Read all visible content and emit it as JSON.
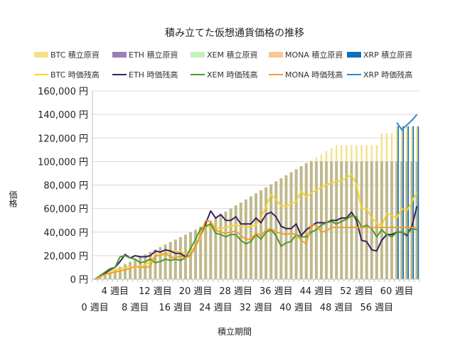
{
  "chart_data": {
    "type": "bar+line",
    "title": "積み立てた仮想通貨価格の推移",
    "xlabel": "積立期間",
    "ylabel": "価格",
    "ylim": [
      0,
      160000
    ],
    "y_ticks": [
      "0 円",
      "20,000 円",
      "40,000 円",
      "60,000 円",
      "80,000 円",
      "100,000 円",
      "120,000 円",
      "140,000 円",
      "160,000 円"
    ],
    "y_tick_values": [
      0,
      20000,
      40000,
      60000,
      80000,
      100000,
      120000,
      140000,
      160000
    ],
    "x": [
      0,
      1,
      2,
      3,
      4,
      5,
      6,
      7,
      8,
      9,
      10,
      11,
      12,
      13,
      14,
      15,
      16,
      17,
      18,
      19,
      20,
      21,
      22,
      23,
      24,
      25,
      26,
      27,
      28,
      29,
      30,
      31,
      32,
      33,
      34,
      35,
      36,
      37,
      38,
      39,
      40,
      41,
      42,
      43,
      44,
      45,
      46,
      47,
      48,
      49,
      50,
      51,
      52,
      53,
      54,
      55,
      56,
      57,
      58,
      59,
      60,
      61,
      62,
      63,
      64
    ],
    "x_tick_labels": [
      {
        "week": 0,
        "label": "0 週目"
      },
      {
        "week": 4,
        "label": "4 週目"
      },
      {
        "week": 8,
        "label": "8 週目"
      },
      {
        "week": 12,
        "label": "12 週目"
      },
      {
        "week": 16,
        "label": "16 週目"
      },
      {
        "week": 20,
        "label": "20 週目"
      },
      {
        "week": 24,
        "label": "24 週目"
      },
      {
        "week": 28,
        "label": "28 週目"
      },
      {
        "week": 32,
        "label": "32 週目"
      },
      {
        "week": 36,
        "label": "36 週目"
      },
      {
        "week": 40,
        "label": "40 週目"
      },
      {
        "week": 44,
        "label": "44 週目"
      },
      {
        "week": 48,
        "label": "48 週目"
      },
      {
        "week": 52,
        "label": "52 週目"
      },
      {
        "week": 56,
        "label": "56 週目"
      },
      {
        "week": 60,
        "label": "60 週目"
      }
    ],
    "grid": true,
    "legend_position": "top",
    "bar_series": [
      {
        "name": "BTC 積立原資",
        "color": "#f5e08a",
        "values": [
          0,
          2100,
          4200,
          6300,
          8400,
          10500,
          12600,
          14700,
          16800,
          18900,
          21000,
          23100,
          25200,
          27300,
          29400,
          31500,
          33600,
          35700,
          37800,
          39900,
          42000,
          44600,
          47100,
          49700,
          52300,
          54900,
          57400,
          60000,
          62600,
          65100,
          67700,
          70300,
          72900,
          75400,
          78000,
          80600,
          83100,
          85700,
          88300,
          90900,
          93400,
          96000,
          98600,
          101100,
          103700,
          106300,
          108900,
          111400,
          114000,
          114000,
          114000,
          114000,
          114000,
          114000,
          114000,
          114000,
          114000,
          124000,
          124000,
          124000,
          130000,
          130000,
          130000,
          130000,
          130000
        ]
      },
      {
        "name": "ETH 積立原資",
        "color": "#9b7fb8",
        "values": [
          0,
          2100,
          4200,
          6300,
          8400,
          10500,
          12600,
          14700,
          16800,
          18900,
          21000,
          23100,
          25200,
          27300,
          29400,
          31500,
          33600,
          35700,
          37800,
          39900,
          42000,
          44600,
          47100,
          49700,
          52300,
          54900,
          57400,
          60000,
          62600,
          65100,
          67700,
          70300,
          72900,
          75400,
          78000,
          80600,
          83100,
          85700,
          88300,
          90900,
          93400,
          96000,
          98600,
          100000,
          100000,
          100000,
          100000,
          100000,
          100000,
          100000,
          100000,
          100000,
          100000,
          100000,
          100000,
          100000,
          100000,
          100000,
          100000,
          100000,
          100000,
          100000,
          100000,
          100000,
          100000
        ]
      },
      {
        "name": "XEM 積立原資",
        "color": "#c6f0b8",
        "values": [
          0,
          2100,
          4200,
          6300,
          8400,
          10500,
          12600,
          14700,
          16800,
          18900,
          21000,
          23100,
          25200,
          27300,
          29400,
          31500,
          33600,
          35700,
          37800,
          39900,
          42000,
          44600,
          47100,
          49700,
          52300,
          54900,
          57400,
          60000,
          62600,
          65100,
          67700,
          70300,
          72900,
          75400,
          78000,
          80600,
          83100,
          85700,
          88300,
          90900,
          93400,
          96000,
          98600,
          100000,
          100000,
          100000,
          100000,
          100000,
          100000,
          100000,
          100000,
          100000,
          100000,
          100000,
          100000,
          100000,
          100000,
          100000,
          100000,
          100000,
          100000,
          100000,
          100000,
          100000,
          100000
        ]
      },
      {
        "name": "MONA 積立原資",
        "color": "#f7c890",
        "values": [
          0,
          2100,
          4200,
          6300,
          8400,
          10500,
          12600,
          14700,
          16800,
          18900,
          21000,
          23100,
          25200,
          27300,
          29400,
          31500,
          33600,
          35700,
          37800,
          39900,
          42000,
          44600,
          47100,
          49700,
          52300,
          54900,
          57400,
          60000,
          62600,
          65100,
          67700,
          70300,
          72900,
          75400,
          78000,
          80600,
          83100,
          85700,
          88300,
          90900,
          93400,
          96000,
          98600,
          100000,
          100000,
          100000,
          100000,
          100000,
          100000,
          100000,
          100000,
          100000,
          100000,
          100000,
          100000,
          100000,
          100000,
          100000,
          100000,
          100000,
          100000,
          100000,
          100000,
          100000,
          100000
        ]
      },
      {
        "name": "XRP 積立原資",
        "color": "#0a70c0",
        "values": [
          null,
          null,
          null,
          null,
          null,
          null,
          null,
          null,
          null,
          null,
          null,
          null,
          null,
          null,
          null,
          null,
          null,
          null,
          null,
          null,
          null,
          null,
          null,
          null,
          null,
          null,
          null,
          null,
          null,
          null,
          null,
          null,
          null,
          null,
          null,
          null,
          null,
          null,
          null,
          null,
          null,
          null,
          null,
          null,
          null,
          null,
          null,
          null,
          null,
          null,
          null,
          null,
          null,
          null,
          null,
          null,
          null,
          null,
          null,
          null,
          130000,
          130000,
          130000,
          130000,
          130000
        ]
      }
    ],
    "line_series": [
      {
        "name": "BTC 時価残高",
        "color": "#f7d430",
        "values": [
          0,
          2000,
          4000,
          6000,
          8000,
          9000,
          10000,
          10000,
          10000,
          11000,
          12000,
          15000,
          20000,
          21000,
          22000,
          23000,
          24000,
          23000,
          22000,
          24000,
          28000,
          36000,
          45000,
          44000,
          44000,
          43000,
          44000,
          45000,
          46000,
          45000,
          44000,
          45000,
          46000,
          52000,
          62000,
          72000,
          68000,
          62000,
          62000,
          64000,
          66000,
          75000,
          70000,
          73000,
          76000,
          78000,
          80000,
          82000,
          83000,
          84000,
          86000,
          89000,
          80000,
          60000,
          60000,
          52000,
          48000,
          45000,
          56000,
          54000,
          52000,
          60000,
          58000,
          66000,
          74000
        ]
      },
      {
        "name": "ETH 時価残高",
        "color": "#3c1f5c",
        "values": [
          0,
          2000,
          5000,
          8000,
          10000,
          15000,
          21000,
          18000,
          20000,
          19000,
          19000,
          20000,
          24000,
          23000,
          25000,
          24000,
          22000,
          22000,
          19000,
          20000,
          28000,
          38000,
          47000,
          58000,
          52000,
          55000,
          50000,
          50000,
          53000,
          47000,
          47000,
          47000,
          52000,
          48000,
          55000,
          57000,
          53000,
          45000,
          43000,
          43000,
          47000,
          37000,
          42000,
          45000,
          48000,
          48000,
          48000,
          50000,
          50000,
          52000,
          52000,
          57000,
          50000,
          33000,
          32000,
          25000,
          24000,
          33000,
          38000,
          38000,
          40000,
          40000,
          37000,
          45000,
          62000
        ]
      },
      {
        "name": "XEM 時価残高",
        "color": "#4c9a2a",
        "values": [
          0,
          3000,
          6000,
          9000,
          10000,
          19000,
          20000,
          18000,
          17000,
          14000,
          15000,
          17000,
          14000,
          15000,
          17000,
          16000,
          17000,
          16000,
          18000,
          26000,
          34000,
          43000,
          45000,
          47000,
          39000,
          38000,
          36000,
          38000,
          38000,
          33000,
          30000,
          32000,
          38000,
          34000,
          40000,
          42000,
          37000,
          28000,
          31000,
          32000,
          38000,
          36000,
          36000,
          40000,
          42000,
          46000,
          48000,
          49000,
          47000,
          49000,
          51000,
          54000,
          53000,
          44000,
          46000,
          43000,
          36000,
          42000,
          38000,
          36000,
          40000,
          40000,
          38000,
          43000,
          42000
        ]
      },
      {
        "name": "MONA 時価残高",
        "color": "#f0a030",
        "values": [
          0,
          2000,
          4000,
          5000,
          6000,
          7000,
          8000,
          9000,
          11000,
          10000,
          10000,
          11000,
          20000,
          20000,
          22000,
          19000,
          18000,
          20000,
          18000,
          20000,
          28000,
          38000,
          50000,
          49000,
          42000,
          40000,
          39000,
          40000,
          41000,
          37000,
          34000,
          34000,
          39000,
          37000,
          42000,
          43000,
          40000,
          39000,
          38000,
          39000,
          38000,
          33000,
          30000,
          46000,
          46000,
          40000,
          41000,
          44000,
          44000,
          44000,
          44000,
          44000,
          44000,
          44000,
          44000,
          44000,
          44000,
          44000,
          44000,
          44000,
          44000,
          44000,
          44000,
          44000,
          44000
        ]
      },
      {
        "name": "XRP 時価残高",
        "color": "#2a8ad0",
        "values": [
          null,
          null,
          null,
          null,
          null,
          null,
          null,
          null,
          null,
          null,
          null,
          null,
          null,
          null,
          null,
          null,
          null,
          null,
          null,
          null,
          null,
          null,
          null,
          null,
          null,
          null,
          null,
          null,
          null,
          null,
          null,
          null,
          null,
          null,
          null,
          null,
          null,
          null,
          null,
          null,
          null,
          null,
          null,
          null,
          null,
          null,
          null,
          null,
          null,
          null,
          null,
          null,
          null,
          null,
          null,
          null,
          null,
          null,
          null,
          null,
          133000,
          127000,
          131000,
          135000,
          140000
        ]
      }
    ]
  }
}
